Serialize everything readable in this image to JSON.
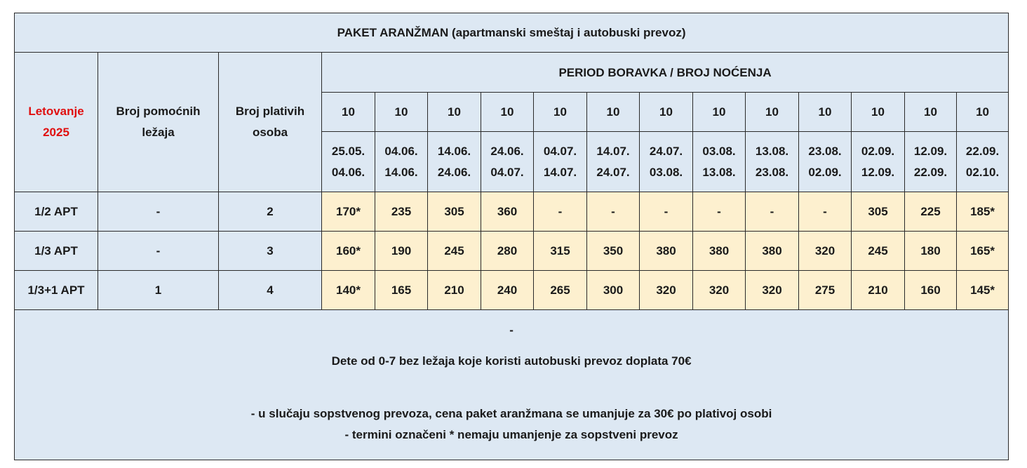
{
  "title": "PAKET ARANŽMAN (apartmanski smeštaj i autobuski prevoz)",
  "season": {
    "line1": "Letovanje",
    "line2": "2025"
  },
  "headers": {
    "aux_beds": {
      "line1": "Broj pomoćnih",
      "line2": "ležaja"
    },
    "paying_persons": {
      "line1": "Broj plativih",
      "line2": "osoba"
    },
    "period": "PERIOD BORAVKA / BROJ NOĆENJA"
  },
  "nights": [
    "10",
    "10",
    "10",
    "10",
    "10",
    "10",
    "10",
    "10",
    "10",
    "10",
    "10",
    "10",
    "10"
  ],
  "periods": [
    {
      "from": "25.05.",
      "to": "04.06."
    },
    {
      "from": "04.06.",
      "to": "14.06."
    },
    {
      "from": "14.06.",
      "to": "24.06."
    },
    {
      "from": "24.06.",
      "to": "04.07."
    },
    {
      "from": "04.07.",
      "to": "14.07."
    },
    {
      "from": "14.07.",
      "to": "24.07."
    },
    {
      "from": "24.07.",
      "to": "03.08."
    },
    {
      "from": "03.08.",
      "to": "13.08."
    },
    {
      "from": "13.08.",
      "to": "23.08."
    },
    {
      "from": "23.08.",
      "to": "02.09."
    },
    {
      "from": "02.09.",
      "to": "12.09."
    },
    {
      "from": "12.09.",
      "to": "22.09."
    },
    {
      "from": "22.09.",
      "to": "02.10."
    }
  ],
  "rows": [
    {
      "type": "1/2 APT",
      "aux": "-",
      "paying": "2",
      "prices": [
        "170*",
        "235",
        "305",
        "360",
        "-",
        "-",
        "-",
        "-",
        "-",
        "-",
        "305",
        "225",
        "185*"
      ]
    },
    {
      "type": "1/3 APT",
      "aux": "-",
      "paying": "3",
      "prices": [
        "160*",
        "190",
        "245",
        "280",
        "315",
        "350",
        "380",
        "380",
        "380",
        "320",
        "245",
        "180",
        "165*"
      ]
    },
    {
      "type": "1/3+1 APT",
      "aux": "1",
      "paying": "4",
      "prices": [
        "140*",
        "165",
        "210",
        "240",
        "265",
        "300",
        "320",
        "320",
        "320",
        "275",
        "210",
        "160",
        "145*"
      ]
    }
  ],
  "notes": {
    "dash": "-",
    "child": "Dete od 0-7 bez ležaja koje koristi autobuski prevoz doplata 70€",
    "own_transport": "- u slučaju sopstvenog prevoza, cena paket aranžmana se umanjuje za 30€ po plativoj osobi",
    "marked": "- termini označeni * nemaju umanjenje za sopstveni prevoz"
  },
  "colors": {
    "header_bg": "#dde8f3",
    "price_bg": "#fdf0cf",
    "season_text": "#e01010"
  }
}
